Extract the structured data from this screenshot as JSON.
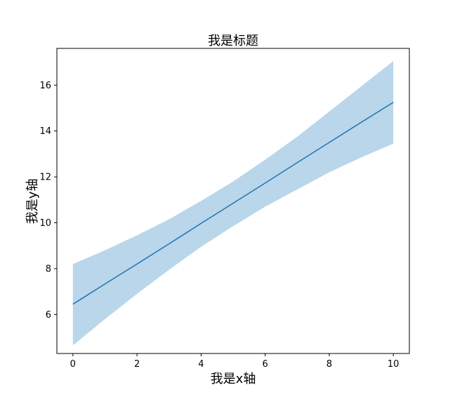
{
  "chart_data": {
    "type": "line",
    "title": "我是标题",
    "xlabel": "我是x轴",
    "ylabel": "我是y轴",
    "xlim": [
      -0.5,
      10.5
    ],
    "ylim": [
      4.3,
      17.6
    ],
    "xticks": [
      0,
      2,
      4,
      6,
      8,
      10
    ],
    "yticks": [
      6,
      8,
      10,
      12,
      14,
      16
    ],
    "grid": false,
    "series": [
      {
        "color": "#1f77b4",
        "x": [
          0,
          1,
          2,
          3,
          4,
          5,
          6,
          7,
          8,
          9,
          10
        ],
        "y": [
          6.45,
          7.33,
          8.2,
          9.08,
          9.97,
          10.85,
          11.73,
          12.62,
          13.5,
          14.38,
          15.25
        ],
        "band_color": "#bad6ea",
        "lower": [
          4.65,
          5.8,
          6.9,
          7.95,
          8.95,
          9.85,
          10.7,
          11.45,
          12.2,
          12.85,
          13.45
        ],
        "upper": [
          8.2,
          8.8,
          9.45,
          10.15,
          10.95,
          11.8,
          12.75,
          13.75,
          14.85,
          15.95,
          17.05
        ]
      }
    ]
  }
}
